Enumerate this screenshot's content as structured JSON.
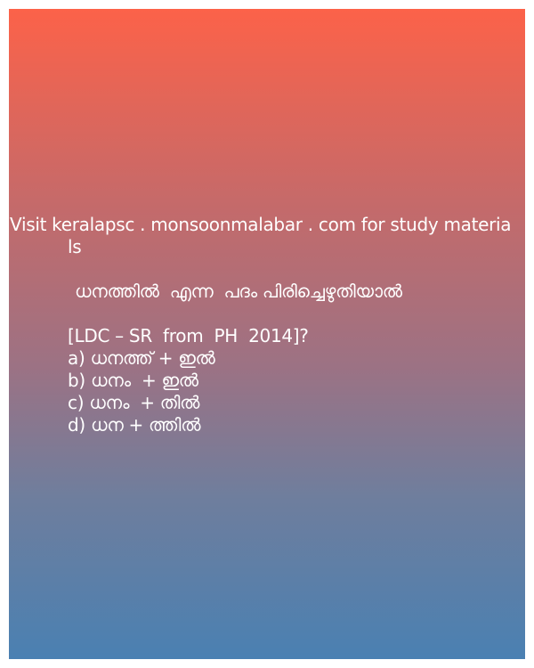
{
  "promo": {
    "line1": "Visit keralapsc . monsoonmalabar . com for study materia",
    "line2": "ls"
  },
  "question": {
    "text": "ധനത്തിൽ  എന്ന  പദം പിരിച്ചെഴുതിയാൽ",
    "source": "[LDC – SR  from  PH  2014]?"
  },
  "options": [
    "a) ധനത്ത് + ഇൽ",
    "b) ധനം  + ഇൽ",
    "c) ധനം  + തിൽ",
    "d) ധന + ത്തിൽ"
  ]
}
